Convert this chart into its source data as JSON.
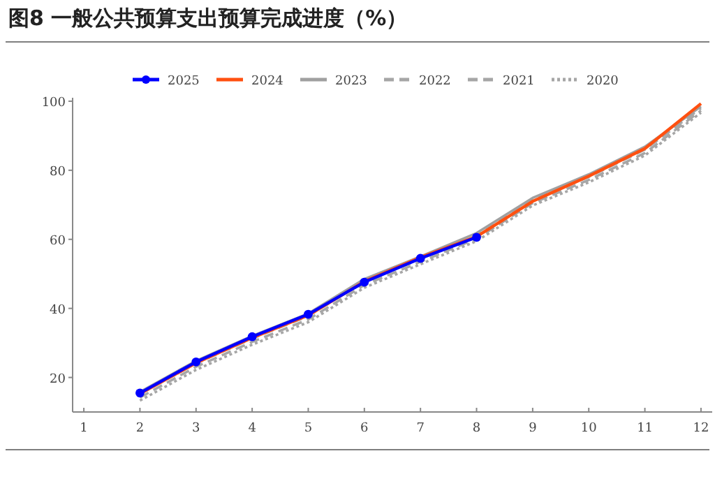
{
  "chart_data": {
    "type": "line",
    "title": "图8  一般公共预算支出预算完成进度（%）",
    "x": [
      2,
      3,
      4,
      5,
      6,
      7,
      8,
      9,
      10,
      11,
      12
    ],
    "xlim": [
      0.8,
      12.2
    ],
    "xticks": [
      1,
      2,
      3,
      4,
      5,
      6,
      7,
      8,
      9,
      10,
      11,
      12
    ],
    "ylim": [
      10,
      101
    ],
    "yticks": [
      20,
      40,
      60,
      80,
      100
    ],
    "legend": "top",
    "series": [
      {
        "name": "2025",
        "color": "#0000ff",
        "line_style": "solid",
        "marker": "circle",
        "values": [
          15.5,
          24.5,
          31.8,
          38.3,
          47.6,
          54.5,
          60.6,
          null,
          null,
          null,
          null
        ]
      },
      {
        "name": "2024",
        "color": "#ff5010",
        "line_style": "solid",
        "values": [
          15.3,
          24.2,
          31.5,
          38.0,
          47.8,
          54.8,
          60.8,
          71.0,
          78.3,
          86.3,
          99.3
        ]
      },
      {
        "name": "2023",
        "color": "#a0a0a0",
        "line_style": "solid",
        "values": [
          15.8,
          24.8,
          32.0,
          38.5,
          48.5,
          55.0,
          61.8,
          72.0,
          78.8,
          86.8,
          98.5
        ]
      },
      {
        "name": "2022",
        "color": "#a6a6a6",
        "line_style": "dashed",
        "values": [
          15.2,
          24.1,
          31.3,
          37.8,
          47.8,
          54.3,
          61.0,
          71.3,
          78.1,
          86.0,
          98.0
        ]
      },
      {
        "name": "2021",
        "color": "#a6a6a6",
        "line_style": "dashed",
        "values": [
          14.2,
          23.1,
          30.3,
          36.8,
          46.8,
          53.5,
          60.2,
          70.5,
          77.2,
          85.0,
          97.3
        ]
      },
      {
        "name": "2020",
        "color": "#a6a6a6",
        "line_style": "dotted",
        "values": [
          13.3,
          22.2,
          29.5,
          36.0,
          46.0,
          52.8,
          59.5,
          69.8,
          76.5,
          84.3,
          96.7
        ]
      }
    ]
  }
}
